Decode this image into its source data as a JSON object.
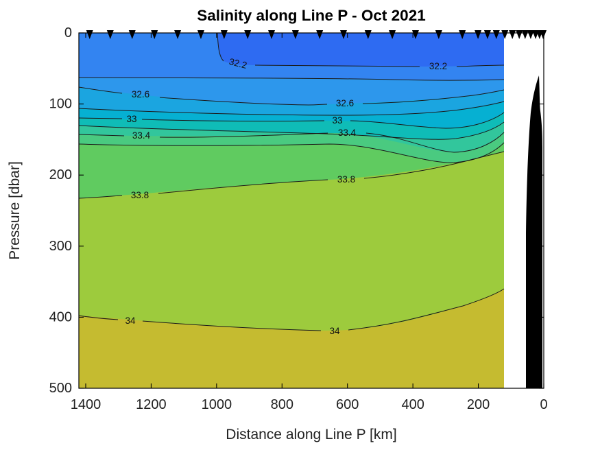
{
  "title": "Salinity along Line P - Oct 2021",
  "axes": {
    "x": {
      "label": "Distance along Line P [km]",
      "ticks": [
        "1400",
        "1200",
        "1000",
        "800",
        "600",
        "400",
        "200",
        "0"
      ],
      "tick_values_km": [
        1400,
        1200,
        1000,
        800,
        600,
        400,
        200,
        0
      ],
      "direction": "reversed",
      "range_km": [
        1420,
        0
      ]
    },
    "y": {
      "label": "Pressure [dbar]",
      "ticks": [
        "0",
        "100",
        "200",
        "300",
        "400",
        "500"
      ],
      "tick_values_dbar": [
        0,
        100,
        200,
        300,
        400,
        500
      ],
      "direction": "increasing-downward",
      "range_dbar": [
        0,
        500
      ]
    }
  },
  "chart_data": {
    "type": "heatmap",
    "subtype": "filled-contour-ocean-section",
    "title": "Salinity along Line P - Oct 2021",
    "xlabel": "Distance along Line P [km]",
    "ylabel": "Pressure [dbar]",
    "xlim": [
      1420,
      0
    ],
    "ylim": [
      0,
      500
    ],
    "grid": false,
    "legend": "none",
    "contour_levels": [
      32.2,
      32.4,
      32.6,
      32.8,
      33.0,
      33.2,
      33.4,
      33.6,
      33.8,
      34.0
    ],
    "labeled_levels": [
      "32.2",
      "32.6",
      "33",
      "33.4",
      "33.8",
      "34"
    ],
    "contour_labels": {
      "l32_2": "32.2",
      "l32_6": "32.6",
      "l33": "33",
      "l33_4": "33.4",
      "l33_8": "33.8",
      "l34": "34"
    },
    "distances_km": [
      1400,
      1000,
      600,
      320,
      130
    ],
    "isohaline_pressure_series": [
      {
        "name": "32.2",
        "pressure_dbar": [
          0,
          45,
          46,
          46,
          45
        ],
        "note": "outcrops to surface near 1000 km"
      },
      {
        "name": "32.4",
        "pressure_dbar": [
          63,
          63,
          64,
          66,
          66
        ]
      },
      {
        "name": "32.6",
        "pressure_dbar": [
          76,
          88,
          100,
          94,
          80
        ]
      },
      {
        "name": "32.8",
        "pressure_dbar": [
          106,
          112,
          116,
          116,
          97
        ]
      },
      {
        "name": "33",
        "pressure_dbar": [
          120,
          124,
          124,
          134,
          112
        ]
      },
      {
        "name": "33.2",
        "pressure_dbar": [
          130,
          136,
          140,
          152,
          125
        ]
      },
      {
        "name": "33.4",
        "pressure_dbar": [
          143,
          142,
          141,
          168,
          140
        ]
      },
      {
        "name": "33.6",
        "pressure_dbar": [
          156,
          157,
          156,
          183,
          154
        ]
      },
      {
        "name": "33.8",
        "pressure_dbar": [
          233,
          219,
          207,
          185,
          167
        ]
      },
      {
        "name": "34",
        "pressure_dbar": [
          398,
          409,
          419,
          395,
          360
        ]
      }
    ],
    "data_extent_km": [
      1420,
      126
    ],
    "station_distances_km": [
      1388,
      1325,
      1258,
      1190,
      1119,
      1048,
      977,
      905,
      832,
      759,
      685,
      612,
      537,
      463,
      392,
      321,
      249,
      201,
      172,
      145,
      119,
      96,
      75,
      57,
      40,
      25,
      13,
      2
    ],
    "band_colors": {
      "lt32_2": "#2E6BF2",
      "b32_2": "#3384F1",
      "b32_4": "#2D97EC",
      "b32_6": "#1BA5E0",
      "b32_8": "#06B0D2",
      "b33_0": "#0FBCB7",
      "b33_2": "#32C69C",
      "b33_4": "#4ACA80",
      "b33_6": "#60CB60",
      "b33_8": "#9DCB3D",
      "b34_0": "#C5BB30"
    },
    "contour_line_color": "#1a1a1a",
    "station_marker_color": "#000000",
    "coast_fill_color": "#000000",
    "axis_color": "#000000"
  }
}
